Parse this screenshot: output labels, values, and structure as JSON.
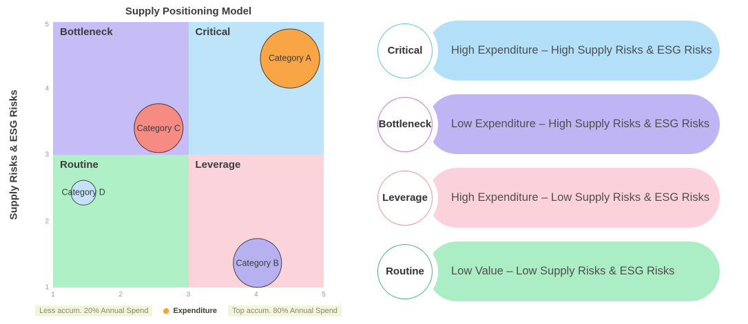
{
  "chart": {
    "title": "Supply Positioning Model",
    "ylabel": "Supply Risks & ESG Risks",
    "xlabel": "",
    "xlim": [
      1,
      5
    ],
    "ylim": [
      1,
      5
    ],
    "xticks": [
      "1",
      "2",
      "3",
      "4",
      "5"
    ],
    "yticks": [
      "5",
      "4",
      "3",
      "2",
      "1"
    ]
  },
  "chart_data": {
    "type": "scatter",
    "subtype": "bubble-quadrant",
    "title": "Supply Positioning Model",
    "xlabel": "",
    "ylabel": "Supply Risks & ESG Risks",
    "xlim": [
      1,
      5
    ],
    "ylim": [
      1,
      5
    ],
    "grid": false,
    "legend_position": "bottom",
    "points": [
      {
        "label": "Category A",
        "x": 4.5,
        "y": 4.45,
        "r": 0.45,
        "color": "#F8A545"
      },
      {
        "label": "Category B",
        "x": 4.02,
        "y": 1.37,
        "r": 0.37,
        "color": "#B7B1EF"
      },
      {
        "label": "Category C",
        "x": 2.56,
        "y": 3.4,
        "r": 0.37,
        "color": "#F68B83"
      },
      {
        "label": "Category D",
        "x": 1.45,
        "y": 2.43,
        "r": 0.19,
        "color": "#C4E3F9"
      }
    ],
    "quadrants": [
      {
        "name": "Bottleneck",
        "x": [
          1,
          3
        ],
        "y": [
          3,
          5
        ],
        "color": "#C6BDF6"
      },
      {
        "name": "Critical",
        "x": [
          3,
          5
        ],
        "y": [
          3,
          5
        ],
        "color": "#BEE4F9"
      },
      {
        "name": "Routine",
        "x": [
          1,
          3
        ],
        "y": [
          1,
          3
        ],
        "color": "#AFF0C6"
      },
      {
        "name": "Leverage",
        "x": [
          3,
          5
        ],
        "y": [
          1,
          3
        ],
        "color": "#FBD4DB"
      }
    ]
  },
  "legend": {
    "items": [
      {
        "label": "Less accum. 20% Annual Spend",
        "type": "range",
        "bg": "#F2F4DC"
      },
      {
        "label": "Expenditure",
        "type": "bubble",
        "marker_color": "#F6A32C"
      },
      {
        "label": "Top accum. 80% Annual Spend",
        "type": "range",
        "bg": "#F2F4DC"
      }
    ]
  },
  "cards": [
    {
      "label": "Critical",
      "description": "High Expenditure – High Supply Risks & ESG Risks",
      "pill_color": "#B4DFF8",
      "ring_color": "#5FC2F0"
    },
    {
      "label": "Bottleneck",
      "description": "Low Expenditure – High Supply Risks & ESG Risks",
      "pill_color": "#BFB4F4",
      "ring_color": "#D36FDE"
    },
    {
      "label": "Leverage",
      "description": "High Expenditure – Low Supply Risks & ESG Risks",
      "pill_color": "#FBD2DB",
      "ring_color": "#F2938C"
    },
    {
      "label": "Routine",
      "description": "Low Value – Low Supply Risks & ESG Risks",
      "pill_color": "#ABEDC4",
      "ring_color": "#44BA79"
    }
  ]
}
